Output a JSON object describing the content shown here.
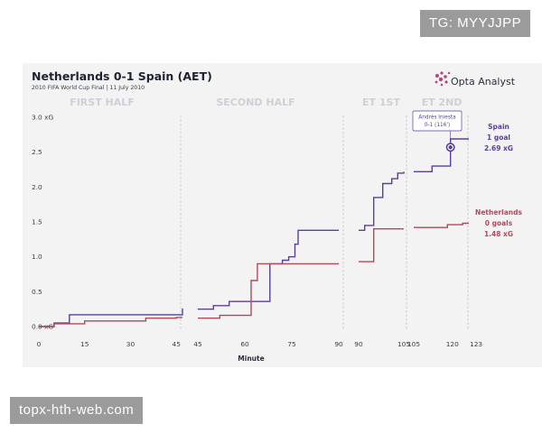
{
  "overlays": {
    "tg": "TG: MYYJJPP",
    "web": "topx-hth-web.com"
  },
  "chart_data": {
    "type": "line",
    "title": "Netherlands 0-1 Spain (AET)",
    "subtitle": "2010 FIFA World Cup Final | 11 July 2010",
    "brand": "Opta Analyst",
    "xlabel": "Minute",
    "ylabel": "",
    "period_labels": [
      "FIRST HALF",
      "SECOND HALF",
      "ET 1ST",
      "ET 2ND"
    ],
    "y_ticks": [
      "0.0 xG",
      "0.5",
      "1.0",
      "1.5",
      "2.0",
      "2.5",
      "3.0 xG"
    ],
    "ylim": [
      0,
      3.0
    ],
    "x_ticks": [
      "0",
      "15",
      "30",
      "45",
      "45",
      "60",
      "75",
      "90",
      "90",
      "105",
      "105",
      "120",
      "123"
    ],
    "grid": false,
    "annotation": {
      "line1": "Andrés Iniesta",
      "line2": "0-1 (116')"
    },
    "series": [
      {
        "name": "Spain",
        "color": "#5b3f9c",
        "label_lines": [
          "Spain",
          "1 goal",
          "2.69 xG"
        ],
        "segments": [
          [
            [
              0,
              0.0
            ],
            [
              5,
              0.0
            ],
            [
              5,
              0.05
            ],
            [
              10,
              0.05
            ],
            [
              10,
              0.17
            ],
            [
              45,
              0.17
            ],
            [
              47,
              0.17
            ],
            [
              47,
              0.24
            ],
            [
              47,
              0.26
            ]
          ],
          [
            [
              45,
              0.25
            ],
            [
              50,
              0.25
            ],
            [
              50,
              0.3
            ],
            [
              55,
              0.3
            ],
            [
              55,
              0.36
            ],
            [
              68,
              0.36
            ],
            [
              68,
              0.9
            ],
            [
              72,
              0.9
            ],
            [
              72,
              0.95
            ],
            [
              74,
              0.95
            ],
            [
              74,
              1.0
            ],
            [
              76,
              1.0
            ],
            [
              76,
              1.18
            ],
            [
              77,
              1.18
            ],
            [
              77,
              1.38
            ],
            [
              90,
              1.38
            ]
          ],
          [
            [
              90,
              1.38
            ],
            [
              92,
              1.38
            ],
            [
              92,
              1.45
            ],
            [
              95,
              1.45
            ],
            [
              95,
              1.85
            ],
            [
              98,
              1.85
            ],
            [
              98,
              2.05
            ],
            [
              101,
              2.05
            ],
            [
              101,
              2.12
            ],
            [
              103,
              2.12
            ],
            [
              103,
              2.2
            ],
            [
              105,
              2.2
            ],
            [
              105,
              2.22
            ]
          ],
          [
            [
              105,
              2.22
            ],
            [
              111,
              2.22
            ],
            [
              111,
              2.3
            ],
            [
              117,
              2.3
            ],
            [
              117,
              2.69
            ],
            [
              123,
              2.69
            ]
          ]
        ]
      },
      {
        "name": "Netherlands",
        "color": "#b04a5a",
        "label_lines": [
          "Netherlands",
          "0 goals",
          "1.48 xG"
        ],
        "segments": [
          [
            [
              0,
              0.0
            ],
            [
              5,
              0.0
            ],
            [
              5,
              0.04
            ],
            [
              15,
              0.04
            ],
            [
              15,
              0.08
            ],
            [
              35,
              0.08
            ],
            [
              35,
              0.12
            ],
            [
              45,
              0.12
            ],
            [
              45,
              0.13
            ],
            [
              47,
              0.13
            ]
          ],
          [
            [
              45,
              0.12
            ],
            [
              52,
              0.12
            ],
            [
              52,
              0.16
            ],
            [
              62,
              0.16
            ],
            [
              62,
              0.66
            ],
            [
              64,
              0.66
            ],
            [
              64,
              0.9
            ],
            [
              90,
              0.9
            ]
          ],
          [
            [
              90,
              0.93
            ],
            [
              95,
              0.93
            ],
            [
              95,
              1.4
            ],
            [
              105,
              1.4
            ]
          ],
          [
            [
              105,
              1.42
            ],
            [
              116,
              1.42
            ],
            [
              116,
              1.46
            ],
            [
              121,
              1.46
            ],
            [
              121,
              1.48
            ],
            [
              123,
              1.48
            ]
          ]
        ]
      }
    ]
  }
}
